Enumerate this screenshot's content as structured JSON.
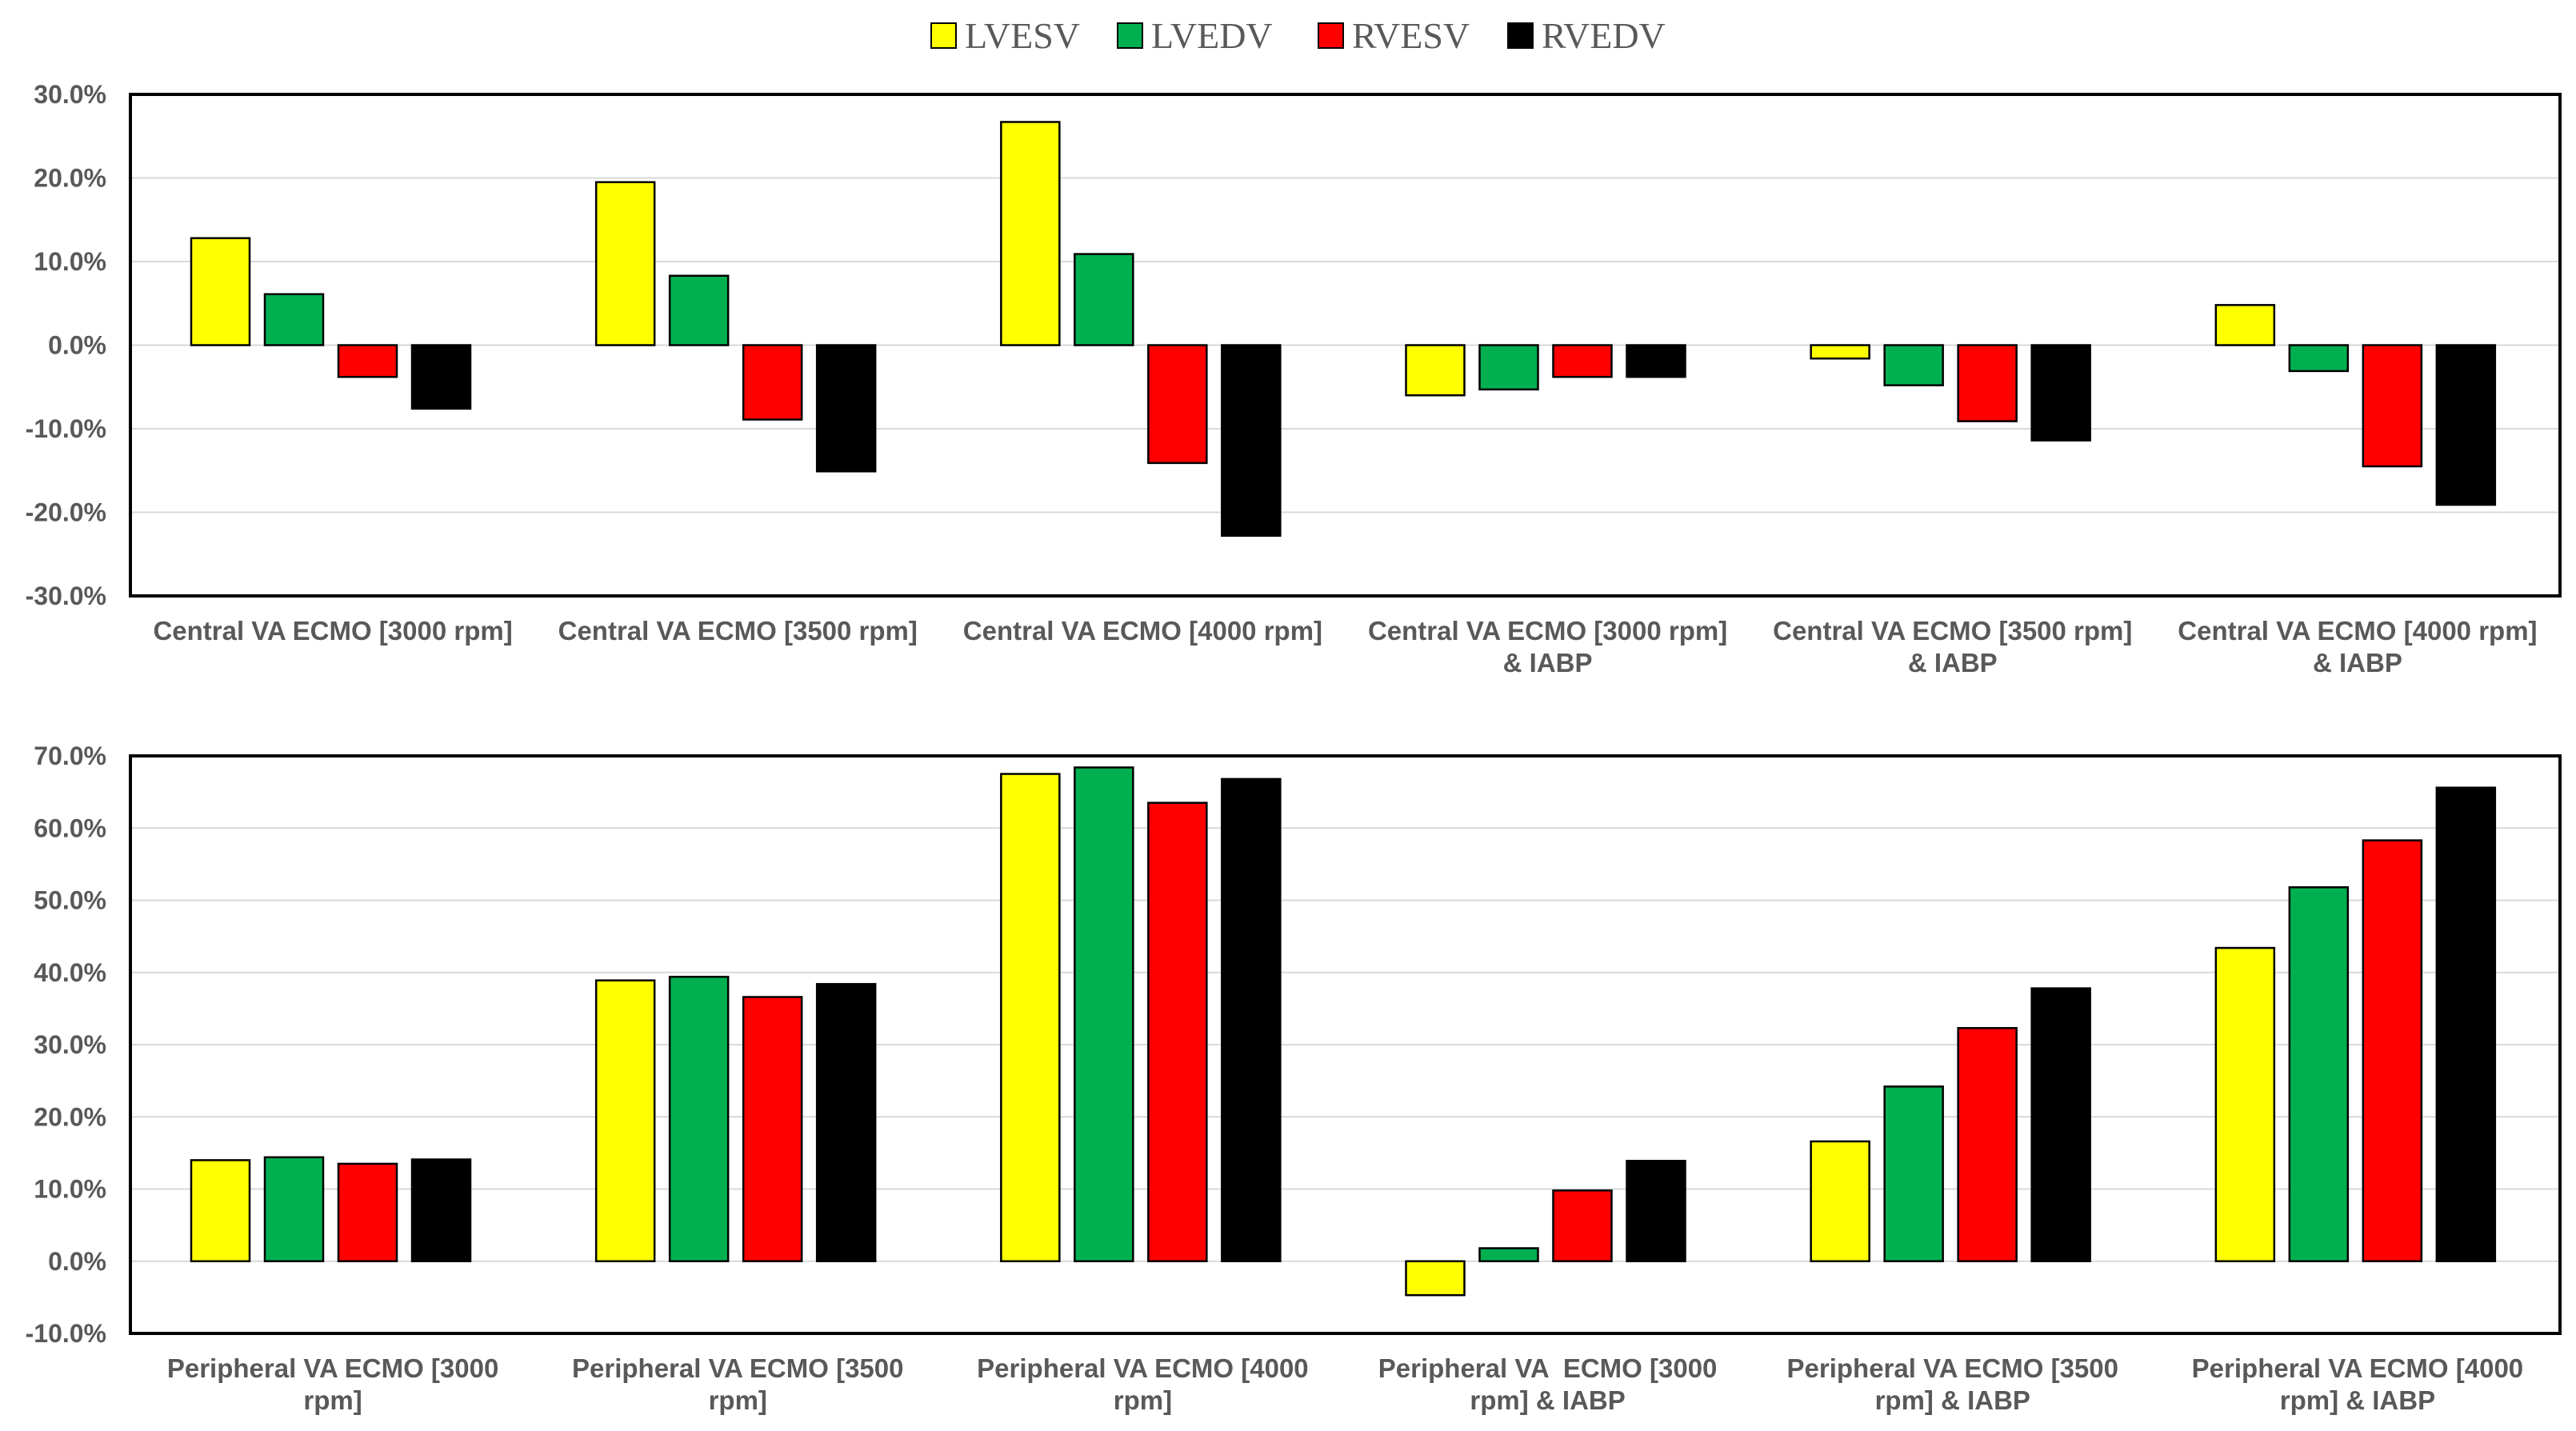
{
  "legend": [
    {
      "name": "LVESV",
      "color": "#FFFF00"
    },
    {
      "name": "LVEDV",
      "color": "#00B050"
    },
    {
      "name": "RVESV",
      "color": "#FF0000"
    },
    {
      "name": "RVEDV",
      "color": "#000000"
    }
  ],
  "chart_data": [
    {
      "type": "bar",
      "title": "",
      "xlabel": "",
      "ylabel": "",
      "ylim": [
        -30,
        30
      ],
      "ytick_step": 10,
      "ytick_labels": [
        "30.0%",
        "20.0%",
        "10.0%",
        "0.0%",
        "-10.0%",
        "-20.0%",
        "-30.0%"
      ],
      "categories": [
        [
          "Central VA ECMO [3000 rpm]"
        ],
        [
          "Central VA ECMO [3500 rpm]"
        ],
        [
          "Central VA ECMO [4000 rpm]"
        ],
        [
          "Central VA ECMO [3000 rpm]",
          "& IABP"
        ],
        [
          "Central VA ECMO [3500 rpm]",
          "& IABP"
        ],
        [
          "Central VA ECMO [4000 rpm]",
          "& IABP"
        ]
      ],
      "series": [
        {
          "name": "LVESV",
          "values": [
            12.8,
            19.5,
            26.7,
            -6.0,
            -1.6,
            4.8
          ]
        },
        {
          "name": "LVEDV",
          "values": [
            6.1,
            8.3,
            10.9,
            -5.3,
            -4.8,
            -3.1
          ]
        },
        {
          "name": "RVESV",
          "values": [
            -3.8,
            -8.9,
            -14.1,
            -3.8,
            -9.1,
            -14.5
          ]
        },
        {
          "name": "RVEDV",
          "values": [
            -7.6,
            -15.1,
            -22.8,
            -3.8,
            -11.4,
            -19.1
          ]
        }
      ]
    },
    {
      "type": "bar",
      "title": "",
      "xlabel": "",
      "ylabel": "",
      "ylim": [
        -10,
        70
      ],
      "ytick_step": 10,
      "ytick_labels": [
        "70.0%",
        "60.0%",
        "50.0%",
        "40.0%",
        "30.0%",
        "20.0%",
        "10.0%",
        "0.0%",
        "-10.0%"
      ],
      "categories": [
        [
          "Peripheral VA ECMO [3000",
          "rpm]"
        ],
        [
          "Peripheral VA ECMO [3500",
          "rpm]"
        ],
        [
          "Peripheral VA ECMO [4000",
          "rpm]"
        ],
        [
          "Peripheral VA  ECMO [3000",
          "rpm] & IABP"
        ],
        [
          "Peripheral VA ECMO [3500",
          "rpm] & IABP"
        ],
        [
          "Peripheral VA ECMO [4000",
          "rpm] & IABP"
        ]
      ],
      "series": [
        {
          "name": "LVESV",
          "values": [
            14.0,
            38.9,
            67.5,
            -4.7,
            16.6,
            43.4
          ]
        },
        {
          "name": "LVEDV",
          "values": [
            14.4,
            39.4,
            68.4,
            1.8,
            24.2,
            51.8
          ]
        },
        {
          "name": "RVESV",
          "values": [
            13.5,
            36.6,
            63.5,
            9.8,
            32.3,
            58.3
          ]
        },
        {
          "name": "RVEDV",
          "values": [
            14.1,
            38.4,
            66.8,
            13.9,
            37.8,
            65.6
          ]
        }
      ]
    }
  ]
}
